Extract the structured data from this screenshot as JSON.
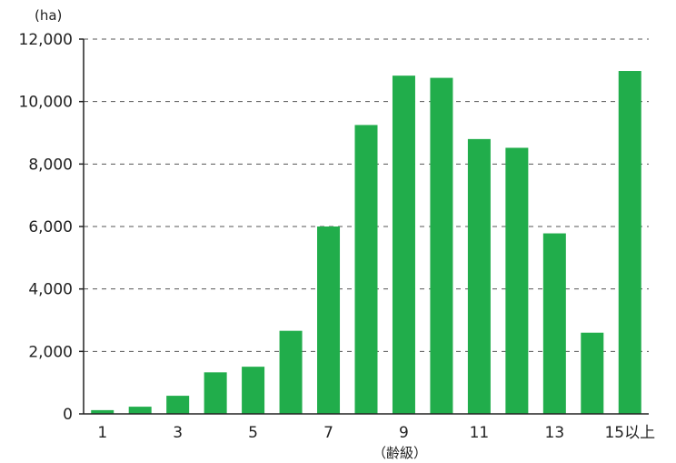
{
  "chart_data": {
    "type": "bar",
    "title": "",
    "ylabel": "(ha)",
    "xlabel": "（齢級）",
    "categories": [
      "1",
      "2",
      "3",
      "4",
      "5",
      "6",
      "7",
      "8",
      "9",
      "10",
      "11",
      "12",
      "13",
      "14",
      "15以上"
    ],
    "x_tick_labels": [
      "1",
      "",
      "3",
      "",
      "5",
      "",
      "7",
      "",
      "9",
      "",
      "11",
      "",
      "13",
      "",
      "15以上"
    ],
    "values": [
      120,
      230,
      580,
      1330,
      1510,
      2660,
      6000,
      9250,
      10830,
      10760,
      8800,
      8520,
      5780,
      2600,
      10980
    ],
    "ylim": [
      0,
      12000
    ],
    "y_ticks": [
      0,
      2000,
      4000,
      6000,
      8000,
      10000,
      12000
    ],
    "y_tick_labels": [
      "0",
      "2,000",
      "4,000",
      "6,000",
      "8,000",
      "10,000",
      "12,000"
    ],
    "grid": true,
    "grid_style": "dashed",
    "legend": "none",
    "bar_color": "#21ad4b",
    "axis_color": "#222222",
    "grid_color": "#555555"
  }
}
